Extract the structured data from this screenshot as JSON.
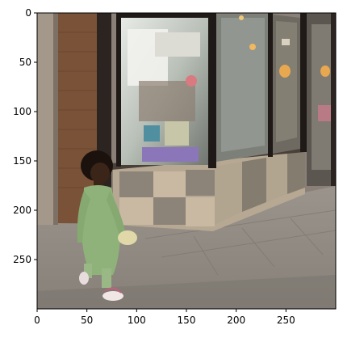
{
  "image": {
    "subject": "photo",
    "x_ticks": [
      "0",
      "50",
      "100",
      "150",
      "200",
      "250"
    ],
    "y_ticks": [
      "0",
      "50",
      "100",
      "150",
      "200",
      "250"
    ],
    "x_tick_values": [
      0,
      50,
      100,
      150,
      200,
      250
    ],
    "y_tick_values": [
      0,
      50,
      100,
      150,
      200,
      250
    ],
    "x_range": [
      0,
      300
    ],
    "y_range": [
      0,
      300
    ],
    "colors": {
      "sidewalk": "#8f8a84",
      "brick": "#7a5238",
      "window_frame": "#2b2420",
      "tile_light": "#c9b9a2",
      "tile_dark": "#8c8478",
      "dress": "#8fb27a",
      "skin": "#3b2418"
    }
  }
}
